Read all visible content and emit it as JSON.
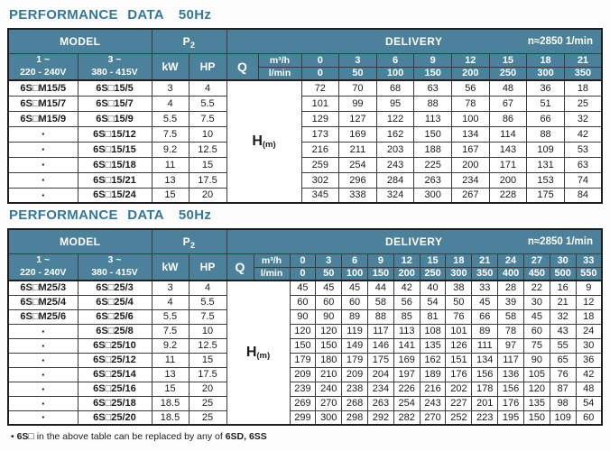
{
  "colors": {
    "header_bg": "#4c819b",
    "title": "#33789b",
    "border": "#3b3b3b"
  },
  "footnote": {
    "bullet": "• ",
    "model_prefix": "6S□",
    "text": " in the above table can be replaced by any of ",
    "replacements": "6SD, 6SS"
  },
  "tables": [
    {
      "title": "PERFORMANCE DATA",
      "frequency": "50Hz",
      "header": {
        "model": "MODEL",
        "p2_base": "P",
        "p2_sub": "2",
        "delivery": "DELIVERY",
        "speed": "n≈2850 1/min",
        "phase1": [
          "1 ~",
          "220 - 240V"
        ],
        "phase3": [
          "3 ~",
          "380 - 415V"
        ],
        "kw": "kW",
        "hp": "HP",
        "q": "Q",
        "flow_unit_top": "m³/h",
        "flow_unit_bottom": "l/min",
        "head_base": "H",
        "head_sub": "(m)"
      },
      "flow_m3h": [
        "0",
        "3",
        "6",
        "9",
        "12",
        "15",
        "18",
        "21"
      ],
      "flow_lmin": [
        "0",
        "50",
        "100",
        "150",
        "200",
        "250",
        "300",
        "350"
      ],
      "rows": [
        {
          "model_1ph": "6S□M15/5",
          "model_3ph": "6S□15/5",
          "kw": "3",
          "hp": "4",
          "head_m": [
            "72",
            "70",
            "68",
            "63",
            "56",
            "48",
            "36",
            "18"
          ]
        },
        {
          "model_1ph": "6S□M15/7",
          "model_3ph": "6S□15/7",
          "kw": "4",
          "hp": "5.5",
          "head_m": [
            "101",
            "99",
            "95",
            "88",
            "78",
            "67",
            "51",
            "25"
          ]
        },
        {
          "model_1ph": "6S□M15/9",
          "model_3ph": "6S□15/9",
          "kw": "5.5",
          "hp": "7.5",
          "head_m": [
            "129",
            "127",
            "122",
            "113",
            "100",
            "86",
            "66",
            "32"
          ]
        },
        {
          "model_1ph": "▪",
          "model_3ph": "6S□15/12",
          "kw": "7.5",
          "hp": "10",
          "head_m": [
            "173",
            "169",
            "162",
            "150",
            "134",
            "114",
            "88",
            "42"
          ]
        },
        {
          "model_1ph": "▪",
          "model_3ph": "6S□15/15",
          "kw": "9.2",
          "hp": "12.5",
          "head_m": [
            "216",
            "211",
            "203",
            "188",
            "167",
            "143",
            "109",
            "53"
          ]
        },
        {
          "model_1ph": "▪",
          "model_3ph": "6S□15/18",
          "kw": "11",
          "hp": "15",
          "head_m": [
            "259",
            "254",
            "243",
            "225",
            "200",
            "171",
            "131",
            "63"
          ]
        },
        {
          "model_1ph": "▪",
          "model_3ph": "6S□15/21",
          "kw": "13",
          "hp": "17.5",
          "head_m": [
            "302",
            "296",
            "284",
            "263",
            "234",
            "200",
            "153",
            "74"
          ]
        },
        {
          "model_1ph": "▪",
          "model_3ph": "6S□15/24",
          "kw": "15",
          "hp": "20",
          "head_m": [
            "345",
            "338",
            "324",
            "300",
            "267",
            "228",
            "175",
            "84"
          ]
        }
      ]
    },
    {
      "title": "PERFORMANCE DATA",
      "frequency": "50Hz",
      "header": {
        "model": "MODEL",
        "p2_base": "P",
        "p2_sub": "2",
        "delivery": "DELIVERY",
        "speed": "n≈2850 1/min",
        "phase1": [
          "1 ~",
          "220 - 240V"
        ],
        "phase3": [
          "3 ~",
          "380 - 415V"
        ],
        "kw": "kW",
        "hp": "HP",
        "q": "Q",
        "flow_unit_top": "m³/h",
        "flow_unit_bottom": "l/min",
        "head_base": "H",
        "head_sub": "(m)"
      },
      "flow_m3h": [
        "0",
        "3",
        "6",
        "9",
        "12",
        "15",
        "18",
        "21",
        "24",
        "27",
        "30",
        "33"
      ],
      "flow_lmin": [
        "0",
        "50",
        "100",
        "150",
        "200",
        "250",
        "300",
        "350",
        "400",
        "450",
        "500",
        "550"
      ],
      "rows": [
        {
          "model_1ph": "6S□M25/3",
          "model_3ph": "6S□25/3",
          "kw": "3",
          "hp": "4",
          "head_m": [
            "45",
            "45",
            "45",
            "44",
            "42",
            "40",
            "38",
            "33",
            "28",
            "22",
            "16",
            "9"
          ]
        },
        {
          "model_1ph": "6S□M25/4",
          "model_3ph": "6S□25/4",
          "kw": "4",
          "hp": "5.5",
          "head_m": [
            "60",
            "60",
            "60",
            "58",
            "56",
            "54",
            "50",
            "45",
            "39",
            "30",
            "21",
            "12"
          ]
        },
        {
          "model_1ph": "6S□M25/6",
          "model_3ph": "6S□25/6",
          "kw": "5.5",
          "hp": "7.5",
          "head_m": [
            "90",
            "90",
            "89",
            "88",
            "85",
            "81",
            "76",
            "66",
            "58",
            "45",
            "32",
            "18"
          ]
        },
        {
          "model_1ph": "▪",
          "model_3ph": "6S□25/8",
          "kw": "7.5",
          "hp": "10",
          "head_m": [
            "120",
            "120",
            "119",
            "117",
            "113",
            "108",
            "101",
            "89",
            "78",
            "60",
            "43",
            "24"
          ]
        },
        {
          "model_1ph": "▪",
          "model_3ph": "6S□25/10",
          "kw": "9.2",
          "hp": "12.5",
          "head_m": [
            "150",
            "150",
            "149",
            "146",
            "141",
            "135",
            "126",
            "111",
            "97",
            "75",
            "55",
            "30"
          ]
        },
        {
          "model_1ph": "▪",
          "model_3ph": "6S□25/12",
          "kw": "11",
          "hp": "15",
          "head_m": [
            "179",
            "180",
            "179",
            "175",
            "169",
            "162",
            "151",
            "134",
            "117",
            "90",
            "65",
            "36"
          ]
        },
        {
          "model_1ph": "▪",
          "model_3ph": "6S□25/14",
          "kw": "13",
          "hp": "17.5",
          "head_m": [
            "209",
            "210",
            "209",
            "204",
            "197",
            "189",
            "176",
            "156",
            "136",
            "105",
            "76",
            "42"
          ]
        },
        {
          "model_1ph": "▪",
          "model_3ph": "6S□25/16",
          "kw": "15",
          "hp": "20",
          "head_m": [
            "239",
            "240",
            "238",
            "234",
            "226",
            "216",
            "202",
            "178",
            "156",
            "120",
            "87",
            "48"
          ]
        },
        {
          "model_1ph": "▪",
          "model_3ph": "6S□25/18",
          "kw": "18.5",
          "hp": "25",
          "head_m": [
            "269",
            "270",
            "268",
            "263",
            "254",
            "243",
            "227",
            "201",
            "176",
            "135",
            "98",
            "54"
          ]
        },
        {
          "model_1ph": "▪",
          "model_3ph": "6S□25/20",
          "kw": "18.5",
          "hp": "25",
          "head_m": [
            "299",
            "300",
            "298",
            "292",
            "282",
            "270",
            "252",
            "223",
            "195",
            "150",
            "109",
            "60"
          ]
        }
      ]
    }
  ]
}
